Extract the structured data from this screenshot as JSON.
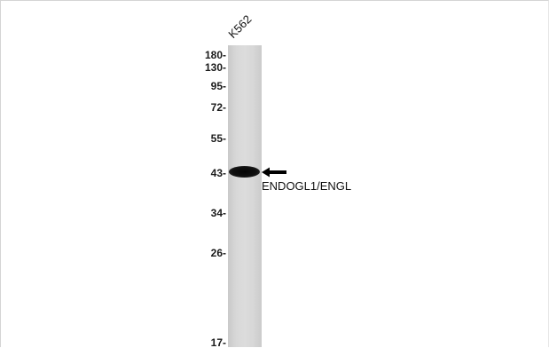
{
  "lane": {
    "label": "K562"
  },
  "markers": [
    {
      "label": "180-"
    },
    {
      "label": "130-"
    },
    {
      "label": "95-"
    },
    {
      "label": "72-"
    },
    {
      "label": "55-"
    },
    {
      "label": "43-"
    },
    {
      "label": "34-"
    },
    {
      "label": "26-"
    },
    {
      "label": "17-"
    }
  ],
  "annotation": {
    "target": "ENDOGL1/ENGL",
    "arrow_icon": "left-arrow-icon"
  },
  "colors": {
    "band": "#0a0a0a",
    "lane": "#d6d6d6",
    "text": "#111111"
  }
}
